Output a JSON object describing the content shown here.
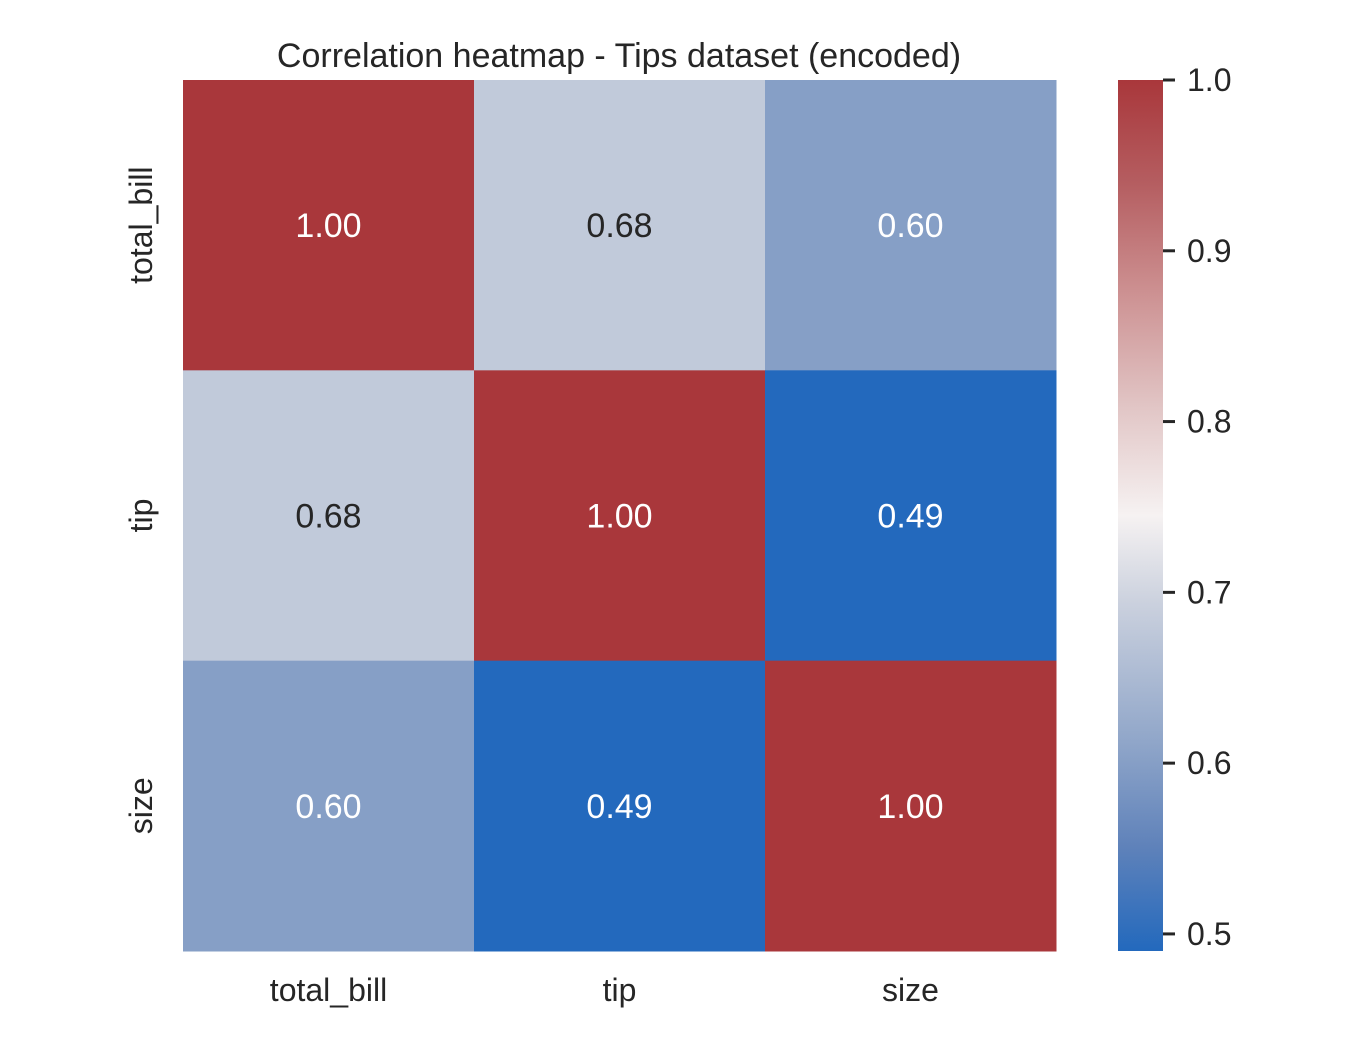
{
  "chart_data": {
    "type": "heatmap",
    "title": "Correlation heatmap - Tips dataset (encoded)",
    "x_categories": [
      "total_bill",
      "tip",
      "size"
    ],
    "y_categories": [
      "total_bill",
      "tip",
      "size"
    ],
    "values": [
      [
        1.0,
        0.68,
        0.6
      ],
      [
        0.68,
        1.0,
        0.49
      ],
      [
        0.6,
        0.49,
        1.0
      ]
    ],
    "cell_labels": [
      [
        "1.00",
        "0.68",
        "0.60"
      ],
      [
        "0.68",
        "1.00",
        "0.49"
      ],
      [
        "0.60",
        "0.49",
        "1.00"
      ]
    ],
    "colormap": "vlag",
    "colorbar": {
      "range": [
        0.49,
        1.0
      ],
      "ticks": [
        "0.5",
        "0.6",
        "0.7",
        "0.8",
        "0.9",
        "1.0"
      ],
      "tick_values": [
        0.5,
        0.6,
        0.7,
        0.8,
        0.9,
        1.0
      ]
    },
    "colors": {
      "high": "#a9373b",
      "mid": "#f6f2f2",
      "low": "#2369bd",
      "text_dark": "#262626",
      "text_light": "#ffffff"
    }
  }
}
